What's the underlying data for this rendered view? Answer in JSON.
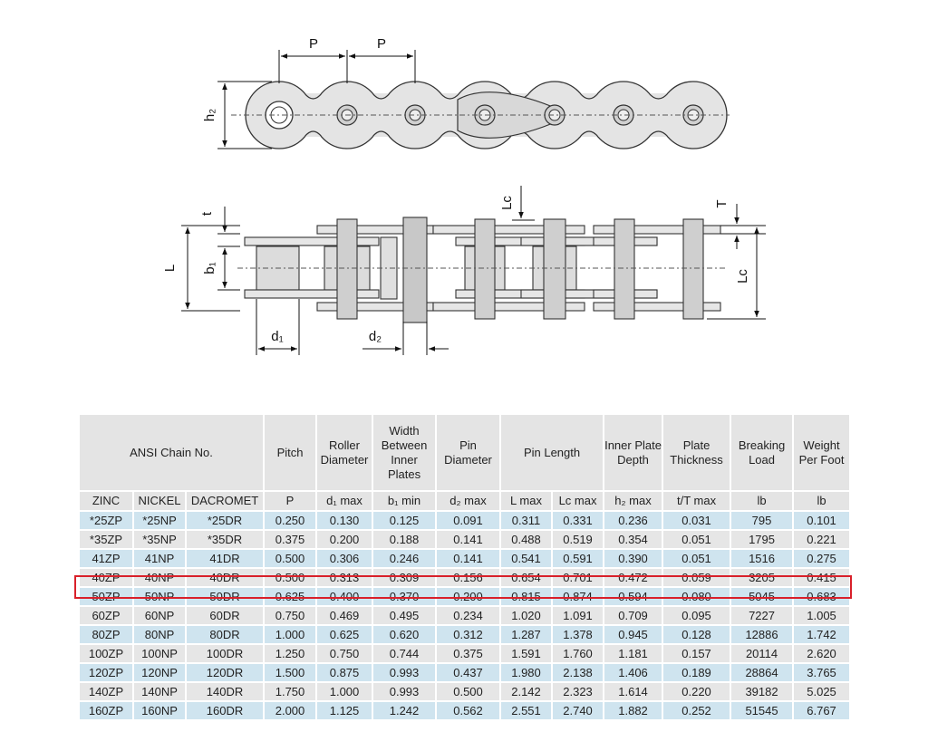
{
  "diagram": {
    "p1": "P",
    "p2": "P",
    "h2": "h₂",
    "t": "t",
    "L": "L",
    "b1": "b₁",
    "lc1": "Lc",
    "T": "T",
    "lc2": "Lc",
    "d1": "d₁",
    "d2": "d₂"
  },
  "table": {
    "group_header": "ANSI Chain No.",
    "headers": [
      "Pitch",
      "Roller Diameter",
      "Width Between Inner Plates",
      "Pin Diameter",
      "Pin Length",
      "Inner Plate Depth",
      "Plate Thickness",
      "Breaking Load",
      "Weight Per Foot"
    ],
    "subheaders": [
      "ZINC",
      "NICKEL",
      "DACROMET",
      "P",
      "d₁ max",
      "b₁ min",
      "d₂ max",
      "L max",
      "Lc max",
      "h₂ max",
      "t/T max",
      "lb",
      "lb"
    ],
    "rows": [
      [
        "*25ZP",
        "*25NP",
        "*25DR",
        "0.250",
        "0.130",
        "0.125",
        "0.091",
        "0.311",
        "0.331",
        "0.236",
        "0.031",
        "795",
        "0.101"
      ],
      [
        "*35ZP",
        "*35NP",
        "*35DR",
        "0.375",
        "0.200",
        "0.188",
        "0.141",
        "0.488",
        "0.519",
        "0.354",
        "0.051",
        "1795",
        "0.221"
      ],
      [
        "41ZP",
        "41NP",
        "41DR",
        "0.500",
        "0.306",
        "0.246",
        "0.141",
        "0.541",
        "0.591",
        "0.390",
        "0.051",
        "1516",
        "0.275"
      ],
      [
        "40ZP",
        "40NP",
        "40DR",
        "0.500",
        "0.313",
        "0.309",
        "0.156",
        "0.654",
        "0.701",
        "0.472",
        "0.059",
        "3205",
        "0.415"
      ],
      [
        "50ZP",
        "50NP",
        "50DR",
        "0.625",
        "0.400",
        "0.370",
        "0.200",
        "0.815",
        "0.874",
        "0.594",
        "0.080",
        "5045",
        "0.683"
      ],
      [
        "60ZP",
        "60NP",
        "60DR",
        "0.750",
        "0.469",
        "0.495",
        "0.234",
        "1.020",
        "1.091",
        "0.709",
        "0.095",
        "7227",
        "1.005"
      ],
      [
        "80ZP",
        "80NP",
        "80DR",
        "1.000",
        "0.625",
        "0.620",
        "0.312",
        "1.287",
        "1.378",
        "0.945",
        "0.128",
        "12886",
        "1.742"
      ],
      [
        "100ZP",
        "100NP",
        "100DR",
        "1.250",
        "0.750",
        "0.744",
        "0.375",
        "1.591",
        "1.760",
        "1.181",
        "0.157",
        "20114",
        "2.620"
      ],
      [
        "120ZP",
        "120NP",
        "120DR",
        "1.500",
        "0.875",
        "0.993",
        "0.437",
        "1.980",
        "2.138",
        "1.406",
        "0.189",
        "28864",
        "3.765"
      ],
      [
        "140ZP",
        "140NP",
        "140DR",
        "1.750",
        "1.000",
        "0.993",
        "0.500",
        "2.142",
        "2.323",
        "1.614",
        "0.220",
        "39182",
        "5.025"
      ],
      [
        "160ZP",
        "160NP",
        "160DR",
        "2.000",
        "1.125",
        "1.242",
        "0.562",
        "2.551",
        "2.740",
        "1.882",
        "0.252",
        "51545",
        "6.767"
      ]
    ]
  }
}
